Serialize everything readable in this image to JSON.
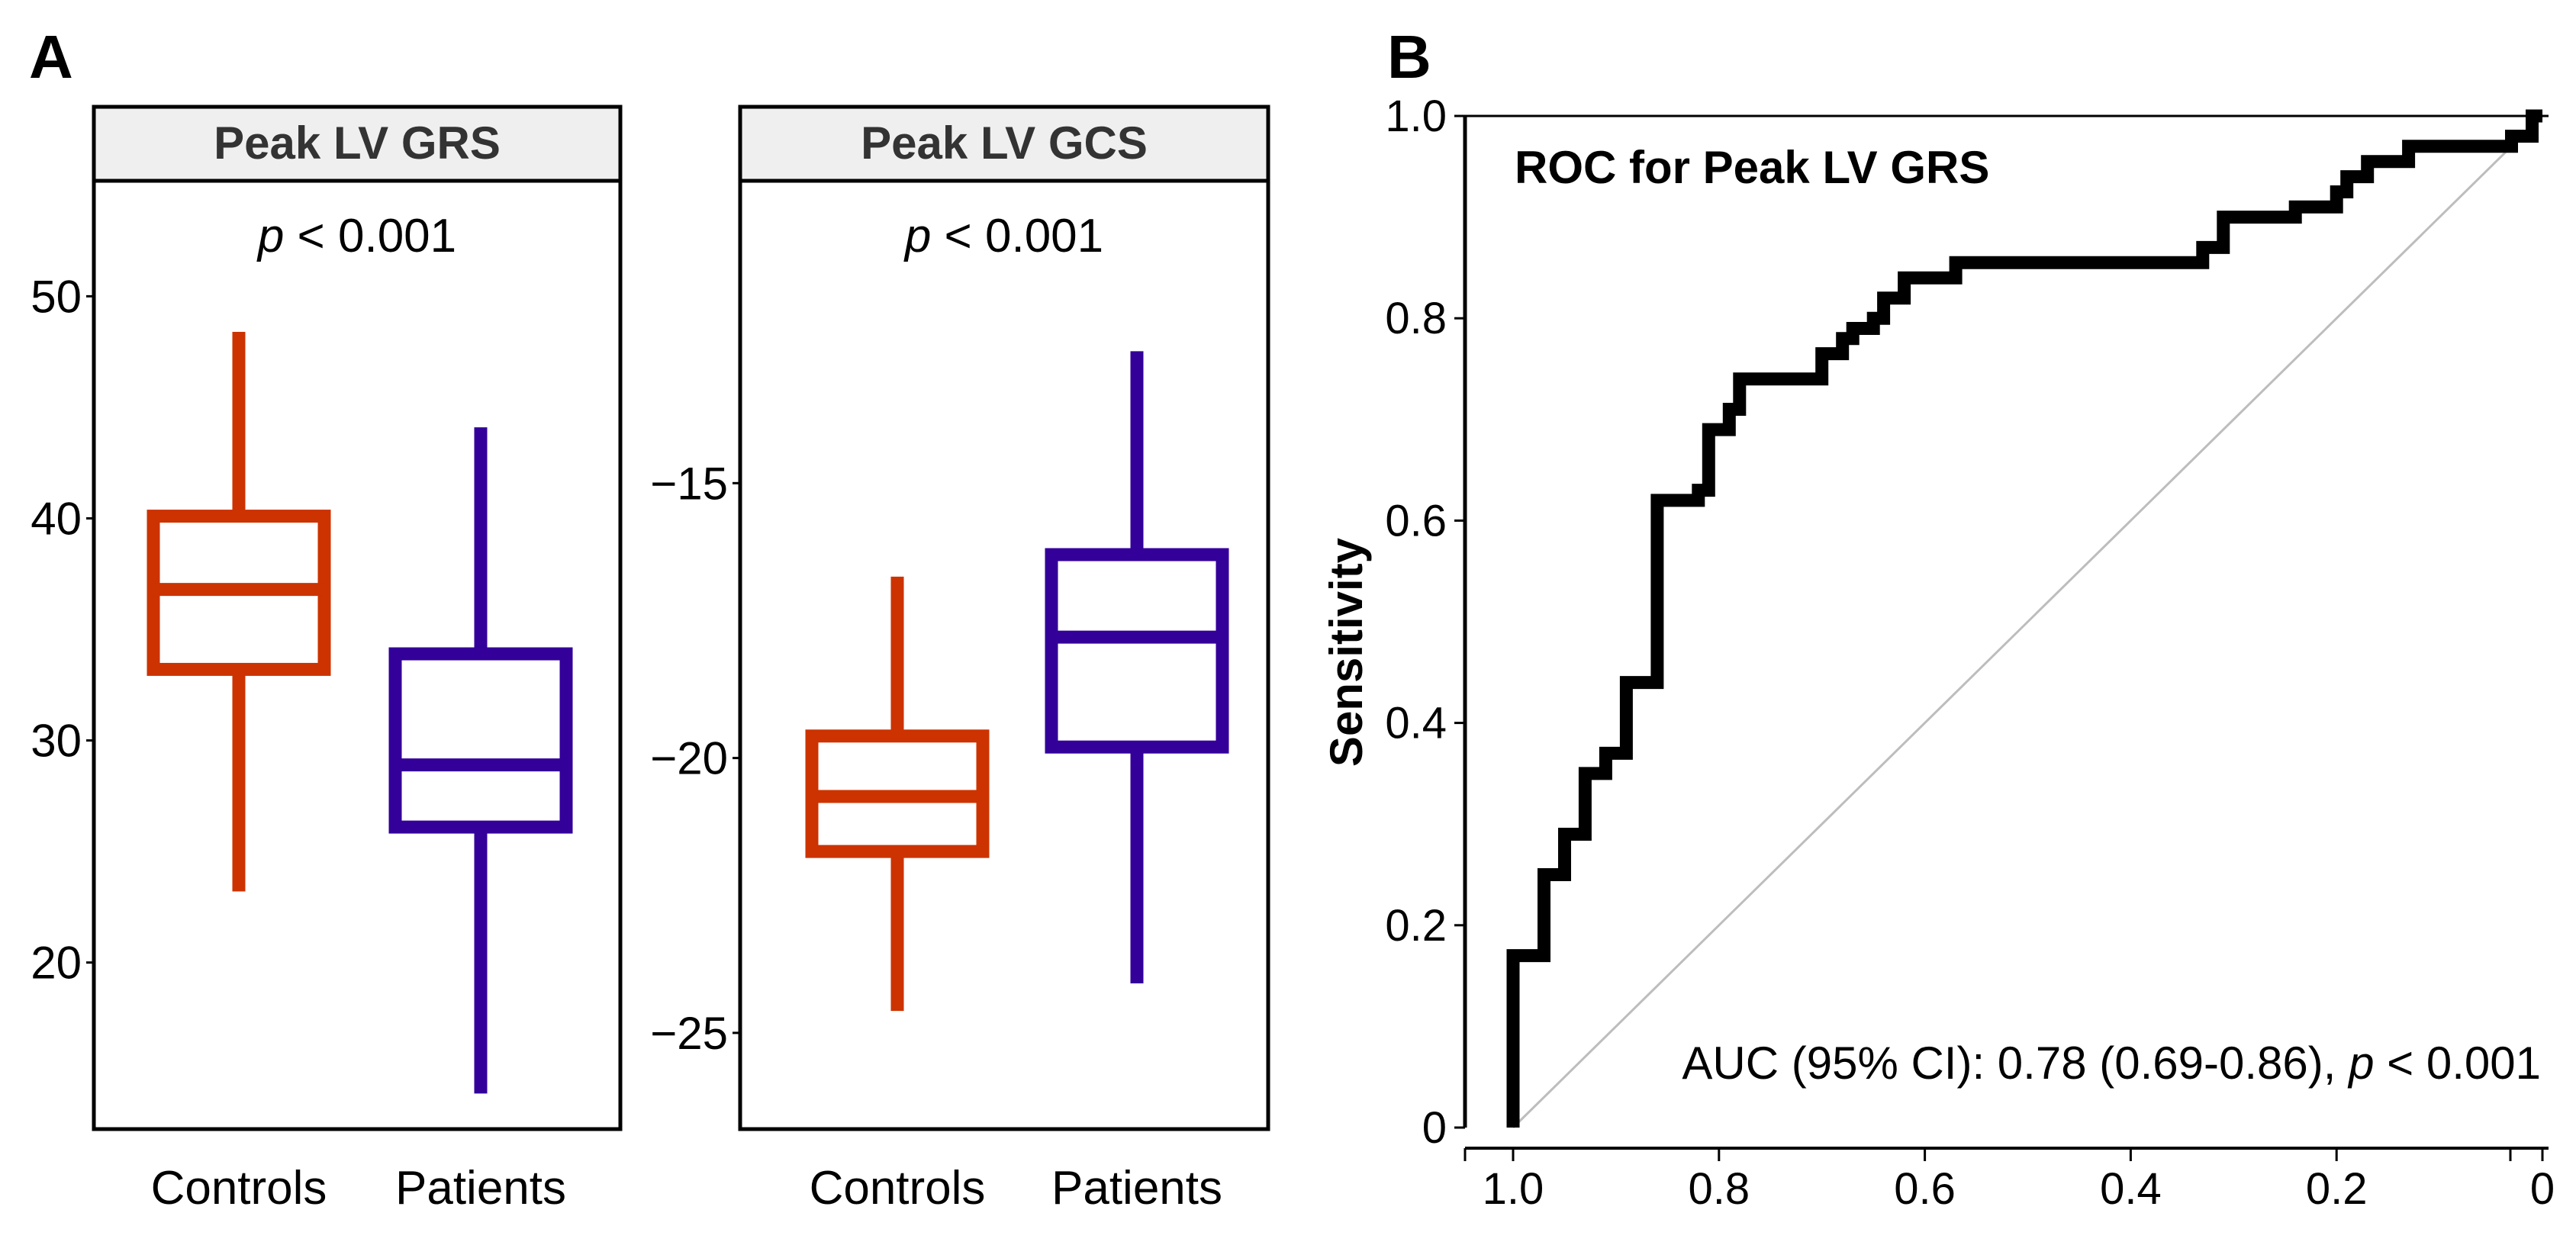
{
  "panel_labels": {
    "a": "A",
    "b": "B"
  },
  "colors": {
    "controls": "#CC3300",
    "patients": "#330099",
    "roc": "#000000",
    "reference": "#BDBDBD",
    "strip": "#EFEFEF"
  },
  "chart_data": [
    {
      "type": "box",
      "panel": "A",
      "title": "Peak LV GRS",
      "annotation": {
        "italic": "p",
        "rest": " < 0.001"
      },
      "ylim": [
        12.5,
        55.2
      ],
      "yticks": [
        20,
        30,
        40,
        50
      ],
      "ytick_labels": [
        "20",
        "30",
        "40",
        "50"
      ],
      "categories": [
        "Controls",
        "Patients"
      ],
      "groups": [
        {
          "name": "Controls",
          "whisker_low": 23.2,
          "q1": 33.2,
          "median": 36.8,
          "q3": 40.1,
          "whisker_high": 48.4
        },
        {
          "name": "Patients",
          "whisker_low": 14.1,
          "q1": 26.1,
          "median": 28.9,
          "q3": 33.9,
          "whisker_high": 44.1
        }
      ]
    },
    {
      "type": "box",
      "panel": "A",
      "title": "Peak LV GCS",
      "annotation": {
        "italic": "p",
        "rest": " < 0.001"
      },
      "ylim": [
        -26.75,
        -9.5
      ],
      "yticks": [
        -25,
        -20,
        -15
      ],
      "ytick_labels": [
        "−25",
        "−20",
        "−15"
      ],
      "categories": [
        "Controls",
        "Patients"
      ],
      "groups": [
        {
          "name": "Controls",
          "whisker_low": -24.6,
          "q1": -21.7,
          "median": -20.7,
          "q3": -19.6,
          "whisker_high": -16.7
        },
        {
          "name": "Patients",
          "whisker_low": -24.1,
          "q1": -19.8,
          "median": -17.8,
          "q3": -16.3,
          "whisker_high": -12.6
        }
      ]
    },
    {
      "type": "line",
      "panel": "B",
      "title": "ROC for Peak LV GRS",
      "xlabel": "",
      "ylabel": "Sensitivity",
      "xlim": [
        1.04,
        0.0
      ],
      "ylim": [
        0.0,
        1.0
      ],
      "xticks": [
        1.0,
        0.8,
        0.6,
        0.4,
        0.2,
        0.0
      ],
      "xtick_labels": [
        "1.0",
        "0.8",
        "0.6",
        "0.4",
        "0.2",
        "0"
      ],
      "yticks": [
        0.0,
        0.2,
        0.4,
        0.6,
        0.8,
        1.0
      ],
      "ytick_labels": [
        "0",
        "0.2",
        "0.4",
        "0.6",
        "0.8",
        "1.0"
      ],
      "annotation": {
        "text": "AUC (95% CI): 0.78 (0.69-0.86), ",
        "italic": "p",
        "rest": " < 0.001"
      },
      "reference_line": [
        [
          1.0,
          0.0
        ],
        [
          0.0,
          1.0
        ]
      ],
      "series": [
        {
          "name": "ROC",
          "points": [
            [
              1.0,
              0.0
            ],
            [
              1.0,
              0.17
            ],
            [
              0.97,
              0.17
            ],
            [
              0.97,
              0.25
            ],
            [
              0.95,
              0.25
            ],
            [
              0.95,
              0.29
            ],
            [
              0.93,
              0.29
            ],
            [
              0.93,
              0.35
            ],
            [
              0.91,
              0.35
            ],
            [
              0.91,
              0.37
            ],
            [
              0.89,
              0.37
            ],
            [
              0.89,
              0.44
            ],
            [
              0.86,
              0.44
            ],
            [
              0.86,
              0.62
            ],
            [
              0.82,
              0.62
            ],
            [
              0.82,
              0.63
            ],
            [
              0.81,
              0.63
            ],
            [
              0.81,
              0.69
            ],
            [
              0.79,
              0.69
            ],
            [
              0.79,
              0.71
            ],
            [
              0.78,
              0.71
            ],
            [
              0.78,
              0.74
            ],
            [
              0.7,
              0.74
            ],
            [
              0.7,
              0.765
            ],
            [
              0.68,
              0.765
            ],
            [
              0.68,
              0.78
            ],
            [
              0.67,
              0.78
            ],
            [
              0.67,
              0.79
            ],
            [
              0.65,
              0.79
            ],
            [
              0.65,
              0.8
            ],
            [
              0.64,
              0.8
            ],
            [
              0.64,
              0.82
            ],
            [
              0.62,
              0.82
            ],
            [
              0.62,
              0.84
            ],
            [
              0.57,
              0.84
            ],
            [
              0.57,
              0.855
            ],
            [
              0.33,
              0.855
            ],
            [
              0.33,
              0.87
            ],
            [
              0.31,
              0.87
            ],
            [
              0.31,
              0.9
            ],
            [
              0.24,
              0.9
            ],
            [
              0.24,
              0.91
            ],
            [
              0.2,
              0.91
            ],
            [
              0.2,
              0.925
            ],
            [
              0.19,
              0.925
            ],
            [
              0.19,
              0.94
            ],
            [
              0.17,
              0.94
            ],
            [
              0.17,
              0.955
            ],
            [
              0.13,
              0.955
            ],
            [
              0.13,
              0.97
            ],
            [
              0.03,
              0.97
            ],
            [
              0.03,
              0.98
            ],
            [
              0.01,
              0.98
            ],
            [
              0.01,
              1.0
            ],
            [
              0.0,
              1.0
            ]
          ]
        }
      ]
    }
  ]
}
